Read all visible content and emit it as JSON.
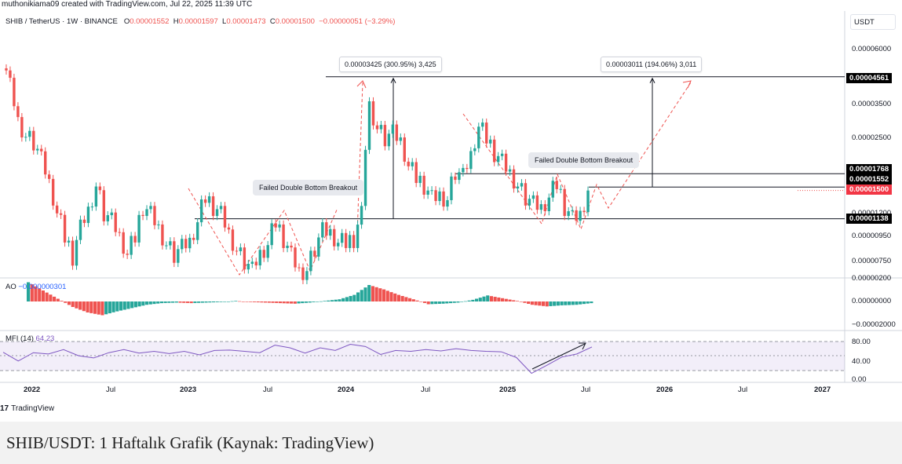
{
  "header": {
    "text": "muthonikiama09 created with TradingView.com, Jul 22, 2025 11:39 UTC"
  },
  "legend": {
    "symbol": "SHIB / TetherUS · 1W · BINANCE",
    "o_label": "O",
    "o": "0.00001552",
    "h_label": "H",
    "h": "0.00001597",
    "l_label": "L",
    "l": "0.00001473",
    "c_label": "C",
    "c": "0.00001500",
    "chg": "−0.00000051 (−3.29%)"
  },
  "currency_button": "USDT",
  "price_axis_labels": [
    "0.00006000",
    "0.00003500",
    "0.00002500",
    "0.00001200",
    "0.00000950",
    "0.00000750",
    "0.00000200"
  ],
  "price_tags": {
    "p1": "0.00004561",
    "p2": "0.00001768",
    "p3": "0.00001552",
    "p4": "0.00001500",
    "p5": "0.00001138"
  },
  "ao": {
    "label": "AO",
    "value": "−0.000000301",
    "axis": [
      "0.00000000",
      "−0.00002000"
    ]
  },
  "mfi": {
    "label": "MFI (14)",
    "value": "64.23",
    "axis": [
      "80.00",
      "40.00",
      "0.00"
    ]
  },
  "time_axis": [
    "2022",
    "Jul",
    "2023",
    "Jul",
    "2024",
    "Jul",
    "2025",
    "Jul",
    "2026",
    "Jul",
    "2027"
  ],
  "annotations": {
    "measure1": "0.00003425 (300.95%) 3,425",
    "measure2": "0.00003011 (194.06%) 3,011",
    "note1": "Failed Double Bottom Breakout",
    "note2": "Failed Double Bottom Breakout"
  },
  "footer": {
    "brand": "TradingView"
  },
  "caption": "SHIB/USDT: 1 Haftalık Grafik (Kaynak: TradingView)",
  "colors": {
    "up": "#26a69a",
    "down": "#ef5350",
    "mfi": "#7e57c2",
    "dashed": "#ef5350"
  },
  "chart_data": {
    "type": "candlestick",
    "title": "SHIB / TetherUS · 1W · BINANCE",
    "x_ticks": [
      "2022",
      "Jul",
      "2023",
      "Jul",
      "2024",
      "Jul",
      "2025",
      "Jul",
      "2026",
      "Jul",
      "2027"
    ],
    "y_ticks": [
      "0.00006000",
      "0.00003500",
      "0.00002500",
      "0.00001200",
      "0.00000950",
      "0.00000750"
    ],
    "horizontal_levels": [
      4.561e-05,
      1.768e-05,
      1.552e-05,
      1.138e-05
    ],
    "last_close": 1.5e-05,
    "series": [
      {
        "name": "price",
        "values": [
          5.5e-05,
          4.2e-05,
          3e-05,
          2.6e-05,
          2.4e-05,
          2e-05,
          1.6e-05,
          1.2e-05,
          9.5e-06,
          8e-06,
          1.05e-05,
          1.25e-05,
          1.6e-05,
          1.2e-05,
          1.1e-05,
          9.5e-06,
          8e-06,
          9.5e-06,
          1.3e-05,
          1.2e-05,
          1.05e-05,
          9e-06,
          8e-06,
          8.5e-06,
          9e-06,
          1.1e-05,
          1.4e-05,
          1.3e-05,
          1.2e-05,
          1e-05,
          8.5e-06,
          7.5e-06,
          6.8e-06,
          8e-06,
          8.8e-06,
          1.1e-05,
          9.5e-06,
          8e-06,
          6.9e-06,
          7e-06,
          8.5e-06,
          1e-05,
          9.8e-06,
          9e-06,
          9e-06,
          9.5e-06,
          1.2e-05,
          3.5e-05,
          2.8e-05,
          2.5e-05,
          2.6e-05,
          2.4e-05,
          1.9e-05,
          1.7e-05,
          1.6e-05,
          1.4e-05,
          1.45e-05,
          1.4e-05,
          1.8e-05,
          1.7e-05,
          2.1e-05,
          2.8e-05,
          2.5e-05,
          2.2e-05,
          2e-05,
          1.8e-05,
          1.6e-05,
          1.4e-05,
          1.3e-05,
          1.25e-05,
          1.4e-05,
          1.6e-05,
          1.3e-05,
          1.15e-05,
          1.2e-05,
          1.5e-05
        ]
      },
      {
        "name": "AO",
        "values": [
          3.5e-06,
          2e-06,
          5e-07,
          -1e-06,
          -2e-06,
          -2.5e-06,
          -1.8e-06,
          -1.2e-06,
          -6e-07,
          -3e-07,
          -2e-07,
          -3e-07,
          -2e-07,
          -1e-07,
          1e-07,
          -1e-07,
          -2e-07,
          -3e-07,
          -4e-07,
          -2e-07,
          1e-07,
          4e-07,
          1.2e-06,
          3e-06,
          2.2e-06,
          1.2e-06,
          4e-07,
          -5e-07,
          -4e-07,
          -2e-07,
          3e-07,
          1.1e-06,
          6e-07,
          1e-07,
          -6e-07,
          -9e-07,
          -7e-07,
          -6e-07,
          -3e-07
        ]
      },
      {
        "name": "MFI (14)",
        "values": [
          60,
          38,
          55,
          50,
          58,
          52,
          45,
          55,
          60,
          50,
          62,
          55,
          58,
          48,
          56,
          65,
          60,
          55,
          70,
          62,
          58,
          68,
          60,
          72,
          65,
          55,
          62,
          58,
          60,
          55,
          68,
          62,
          58,
          55,
          40,
          12,
          28,
          45,
          50,
          64
        ]
      }
    ]
  }
}
